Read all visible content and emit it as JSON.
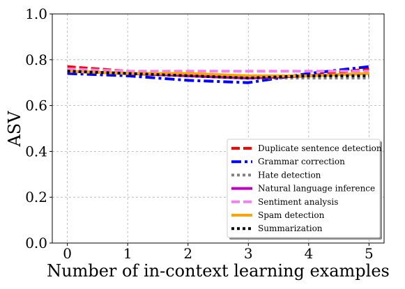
{
  "chart_data": {
    "type": "line",
    "xlabel": "Number of in-context learning examples",
    "ylabel": "ASV",
    "xlim": [
      -0.25,
      5.25
    ],
    "ylim": [
      0.0,
      1.0
    ],
    "x_ticks": [
      0,
      1,
      2,
      3,
      4,
      5
    ],
    "x_tick_labels": [
      "0",
      "1",
      "2",
      "3",
      "4",
      "5"
    ],
    "y_ticks": [
      0.0,
      0.2,
      0.4,
      0.6,
      0.8,
      1.0
    ],
    "y_tick_labels": [
      "0.0",
      "0.2",
      "0.4",
      "0.6",
      "0.8",
      "1.0"
    ],
    "grid": true,
    "legend_position": "bottom-right",
    "x": [
      0,
      1,
      2,
      3,
      4,
      5
    ],
    "series": [
      {
        "name": "Duplicate sentence detection",
        "color": "#ff0000",
        "dash": "dashed",
        "values": [
          0.77,
          0.75,
          0.73,
          0.72,
          0.73,
          0.76
        ]
      },
      {
        "name": "Grammar correction",
        "color": "#0000ff",
        "dash": "dashdot",
        "values": [
          0.74,
          0.73,
          0.71,
          0.7,
          0.74,
          0.77
        ]
      },
      {
        "name": "Hate detection",
        "color": "#808080",
        "dash": "dotted",
        "values": [
          0.75,
          0.74,
          0.73,
          0.72,
          0.72,
          0.72
        ]
      },
      {
        "name": "Natural language inference",
        "color": "#bf00bf",
        "dash": "solid",
        "values": [
          0.75,
          0.74,
          0.73,
          0.72,
          0.73,
          0.74
        ]
      },
      {
        "name": "Sentiment analysis",
        "color": "#ee82ee",
        "dash": "dashed",
        "values": [
          0.76,
          0.75,
          0.75,
          0.75,
          0.75,
          0.75
        ]
      },
      {
        "name": "Spam detection",
        "color": "#ffa500",
        "dash": "solid",
        "values": [
          0.75,
          0.74,
          0.74,
          0.73,
          0.73,
          0.74
        ]
      },
      {
        "name": "Summarization",
        "color": "#000000",
        "dash": "dotted",
        "values": [
          0.75,
          0.74,
          0.73,
          0.72,
          0.73,
          0.73
        ]
      }
    ]
  }
}
